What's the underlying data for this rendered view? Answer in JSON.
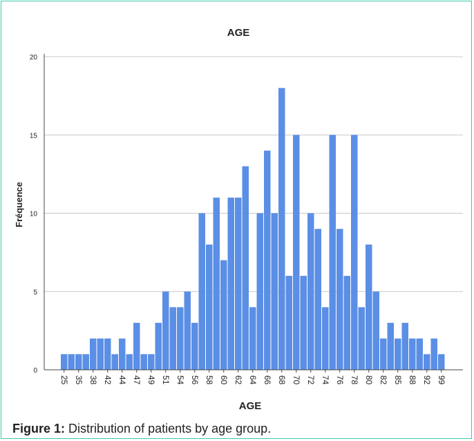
{
  "chart_data": {
    "type": "bar",
    "title": "AGE",
    "xlabel": "AGE",
    "ylabel": "Fréquence",
    "ylim": [
      0,
      20
    ],
    "yticks": [
      0,
      5,
      10,
      15,
      20
    ],
    "grid": true,
    "bar_color": "#5b8fe6",
    "categories": [
      "25",
      "",
      "35",
      "",
      "38",
      "",
      "42",
      "",
      "44",
      "",
      "47",
      "",
      "49",
      "",
      "51",
      "",
      "54",
      "",
      "56",
      "",
      "58",
      "",
      "60",
      "",
      "62",
      "",
      "64",
      "",
      "66",
      "",
      "68",
      "",
      "70",
      "",
      "72",
      "",
      "74",
      "",
      "76",
      "",
      "78",
      "",
      "80",
      "",
      "82",
      "",
      "85",
      "",
      "88",
      "",
      "92",
      "",
      "99"
    ],
    "values": [
      1,
      1,
      1,
      1,
      2,
      2,
      2,
      1,
      2,
      1,
      3,
      1,
      1,
      3,
      5,
      4,
      4,
      5,
      3,
      10,
      8,
      11,
      7,
      11,
      11,
      13,
      4,
      10,
      14,
      10,
      18,
      6,
      15,
      6,
      10,
      9,
      4,
      15,
      9,
      6,
      15,
      4,
      8,
      5,
      2,
      3,
      2,
      3,
      2,
      2,
      1,
      2,
      1
    ]
  },
  "caption": {
    "label": "Figure 1:",
    "text": " Distribution of patients by age group."
  }
}
